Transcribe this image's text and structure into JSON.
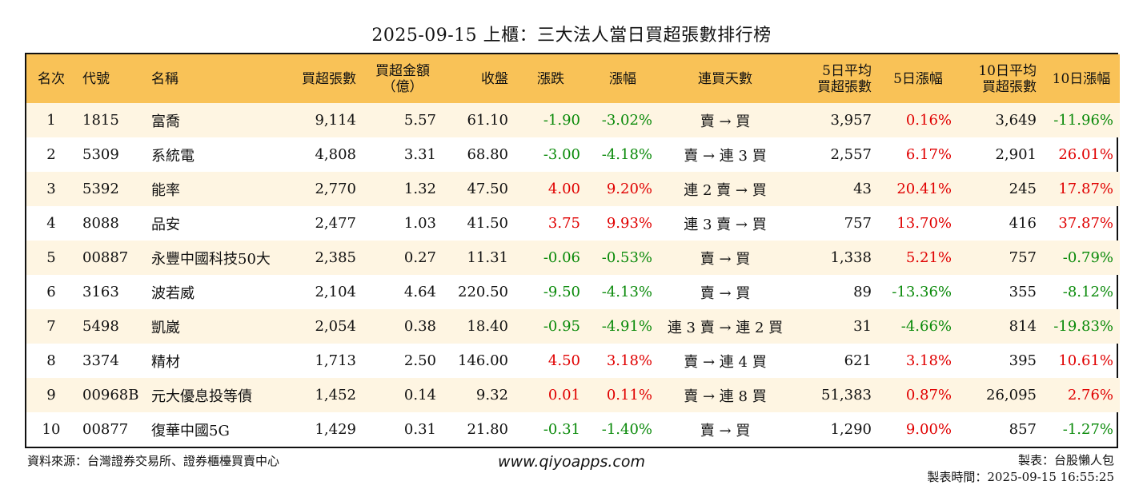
{
  "title": "2025-09-15 上櫃：三大法人當日買超張數排行榜",
  "headers": [
    [
      "名次"
    ],
    [
      "代號"
    ],
    [
      "名稱"
    ],
    [
      "買超張數"
    ],
    [
      "買超金額",
      "（億）"
    ],
    [
      "收盤"
    ],
    [
      "漲跌"
    ],
    [
      "漲幅"
    ],
    [
      "連買天數"
    ],
    [
      "5日平均",
      "買超張數"
    ],
    [
      "5日漲幅"
    ],
    [
      "10日平均",
      "買超張數"
    ],
    [
      "10日漲幅"
    ]
  ],
  "rows": [
    {
      "rank": "1",
      "code": "1815",
      "name": "富喬",
      "buy_lots": "9,114",
      "amount": "5.57",
      "close": "61.10",
      "change": "-1.90",
      "pct": "-3.02%",
      "streak": "賣 → 買",
      "avg5": "3,957",
      "pct5": "0.16%",
      "avg10": "3,649",
      "pct10": "-11.96%"
    },
    {
      "rank": "2",
      "code": "5309",
      "name": "系統電",
      "buy_lots": "4,808",
      "amount": "3.31",
      "close": "68.80",
      "change": "-3.00",
      "pct": "-4.18%",
      "streak": "賣 → 連 3 買",
      "avg5": "2,557",
      "pct5": "6.17%",
      "avg10": "2,901",
      "pct10": "26.01%"
    },
    {
      "rank": "3",
      "code": "5392",
      "name": "能率",
      "buy_lots": "2,770",
      "amount": "1.32",
      "close": "47.50",
      "change": "4.00",
      "pct": "9.20%",
      "streak": "連 2 賣 → 買",
      "avg5": "43",
      "pct5": "20.41%",
      "avg10": "245",
      "pct10": "17.87%"
    },
    {
      "rank": "4",
      "code": "8088",
      "name": "品安",
      "buy_lots": "2,477",
      "amount": "1.03",
      "close": "41.50",
      "change": "3.75",
      "pct": "9.93%",
      "streak": "連 3 賣 → 買",
      "avg5": "757",
      "pct5": "13.70%",
      "avg10": "416",
      "pct10": "37.87%"
    },
    {
      "rank": "5",
      "code": "00887",
      "name": "永豐中國科技50大",
      "buy_lots": "2,385",
      "amount": "0.27",
      "close": "11.31",
      "change": "-0.06",
      "pct": "-0.53%",
      "streak": "賣 → 買",
      "avg5": "1,338",
      "pct5": "5.21%",
      "avg10": "757",
      "pct10": "-0.79%"
    },
    {
      "rank": "6",
      "code": "3163",
      "name": "波若威",
      "buy_lots": "2,104",
      "amount": "4.64",
      "close": "220.50",
      "change": "-9.50",
      "pct": "-4.13%",
      "streak": "賣 → 買",
      "avg5": "89",
      "pct5": "-13.36%",
      "avg10": "355",
      "pct10": "-8.12%"
    },
    {
      "rank": "7",
      "code": "5498",
      "name": "凱崴",
      "buy_lots": "2,054",
      "amount": "0.38",
      "close": "18.40",
      "change": "-0.95",
      "pct": "-4.91%",
      "streak": "連 3 賣 → 連 2 買",
      "avg5": "31",
      "pct5": "-4.66%",
      "avg10": "814",
      "pct10": "-19.83%"
    },
    {
      "rank": "8",
      "code": "3374",
      "name": "精材",
      "buy_lots": "1,713",
      "amount": "2.50",
      "close": "146.00",
      "change": "4.50",
      "pct": "3.18%",
      "streak": "賣 → 連 4 買",
      "avg5": "621",
      "pct5": "3.18%",
      "avg10": "395",
      "pct10": "10.61%"
    },
    {
      "rank": "9",
      "code": "00968B",
      "name": "元大優息投等債",
      "buy_lots": "1,452",
      "amount": "0.14",
      "close": "9.32",
      "change": "0.01",
      "pct": "0.11%",
      "streak": "賣 → 連 8 買",
      "avg5": "51,383",
      "pct5": "0.87%",
      "avg10": "26,095",
      "pct10": "2.76%"
    },
    {
      "rank": "10",
      "code": "00877",
      "name": "復華中國5G",
      "buy_lots": "1,429",
      "amount": "0.31",
      "close": "21.80",
      "change": "-0.31",
      "pct": "-1.40%",
      "streak": "賣 → 買",
      "avg5": "1,290",
      "pct5": "9.00%",
      "avg10": "857",
      "pct10": "-1.27%"
    }
  ],
  "footer": {
    "source": "資料來源：台灣證券交易所、證券櫃檯買賣中心",
    "site": "www.qiyoapps.com",
    "maker": "製表：台股懶人包",
    "made_time": "製表時間：2025-09-15 16:55:25"
  },
  "colors": {
    "header_bg": "#f9c257",
    "alt_row": "#fef5e2",
    "up": "#e00000",
    "down": "#0a8a0a"
  }
}
